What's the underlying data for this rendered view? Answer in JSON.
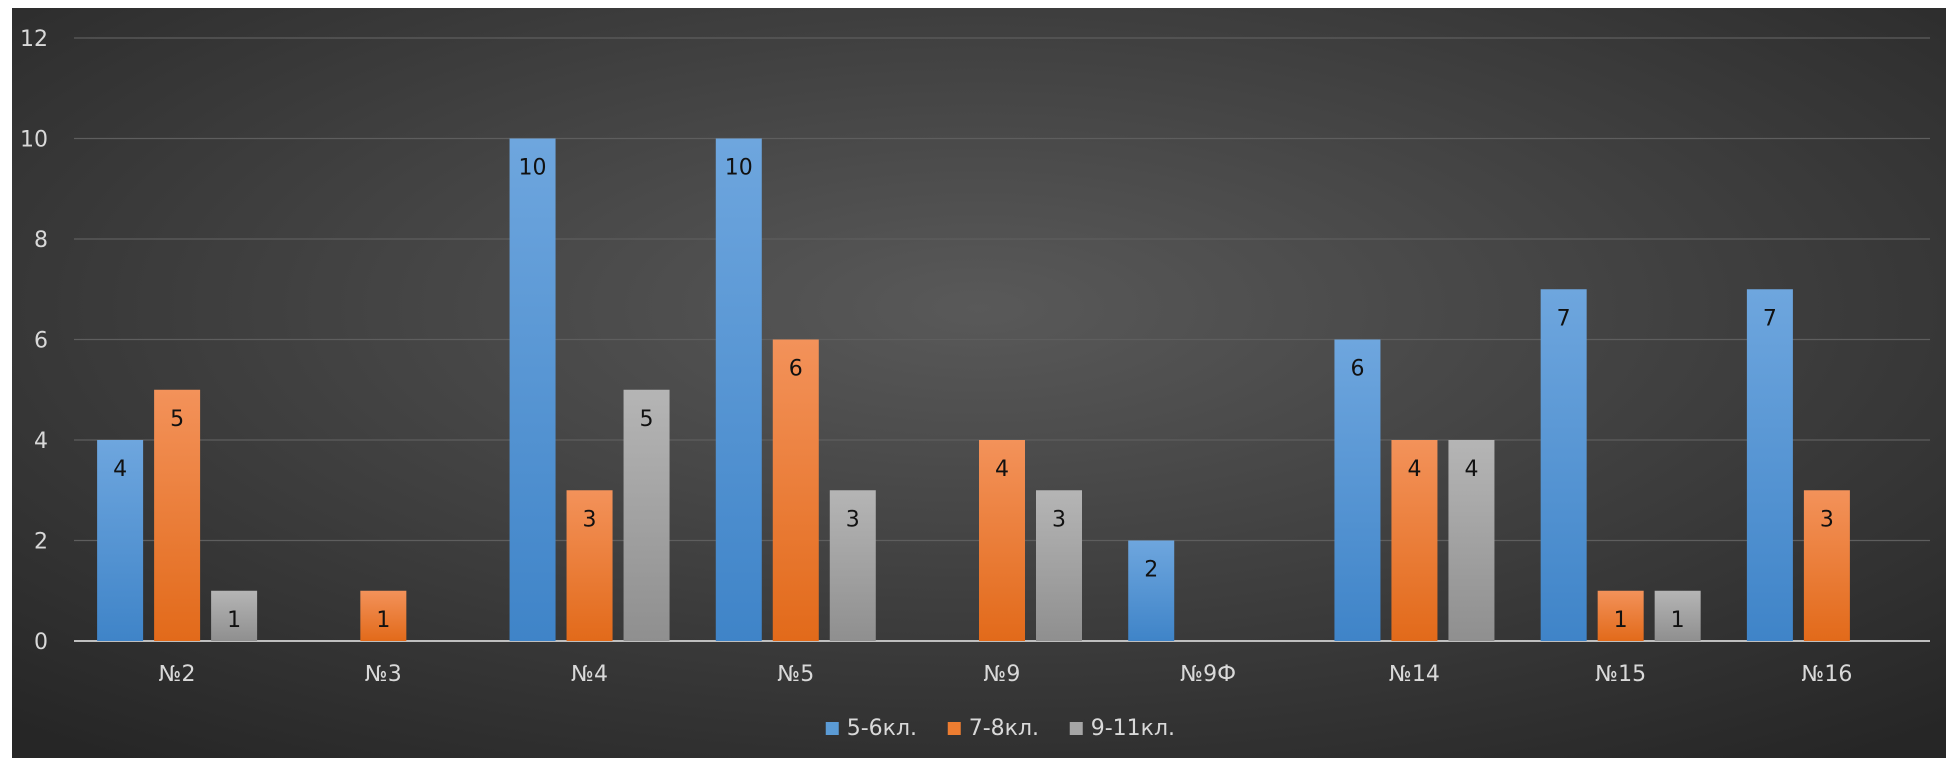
{
  "chart_data": {
    "type": "bar",
    "categories": [
      "№2",
      "№3",
      "№4",
      "№5",
      "№9",
      "№9Ф",
      "№14",
      "№15",
      "№16"
    ],
    "series": [
      {
        "name": "5-6кл.",
        "color": "#5b9bd5",
        "values": [
          4,
          null,
          10,
          10,
          null,
          2,
          6,
          7,
          7
        ]
      },
      {
        "name": "7-8кл.",
        "color": "#ed7d31",
        "values": [
          5,
          1,
          3,
          6,
          4,
          null,
          4,
          1,
          3
        ]
      },
      {
        "name": "9-11кл.",
        "color": "#a5a5a5",
        "values": [
          1,
          null,
          5,
          3,
          3,
          null,
          4,
          1,
          null
        ]
      }
    ],
    "ylim": [
      0,
      12
    ],
    "yticks": [
      0,
      2,
      4,
      6,
      8,
      10,
      12
    ],
    "grid": true,
    "legend": "bottom",
    "background": "#3a3a3a"
  }
}
